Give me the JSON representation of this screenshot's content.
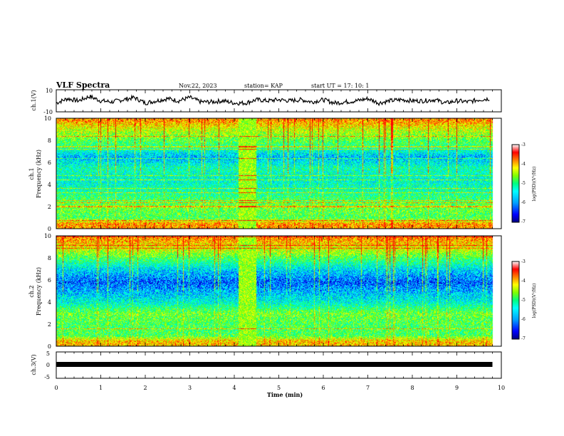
{
  "header": {
    "title": "VLF Spectra",
    "date": "Nov.22, 2023",
    "station": "station= KAP",
    "start": "start  UT  =   17: 10: 1"
  },
  "colors": {
    "background": "#ffffff",
    "frame": "#000000",
    "trace": "#000000",
    "colormap": [
      "#000080",
      "#0000ff",
      "#00a0ff",
      "#00ffff",
      "#00ff80",
      "#80ff00",
      "#ffff00",
      "#ff8000",
      "#ff0000",
      "#ffffff"
    ]
  },
  "chart_data": [
    {
      "id": "ch1-waveform",
      "type": "line",
      "ylabel": "ch.1(V)",
      "ylim": [
        -10,
        10
      ],
      "yticks": [
        "10",
        "-10"
      ],
      "xlim": [
        0,
        10
      ],
      "series": [
        {
          "x": [
            0,
            0.25,
            0.5,
            0.75,
            1,
            1.25,
            1.5,
            1.75,
            2,
            2.25,
            2.5,
            2.75,
            3,
            3.25,
            3.5,
            3.75,
            4,
            4.25,
            4.5,
            4.75,
            5,
            5.25,
            5.5,
            5.75,
            6,
            6.25,
            6.5,
            6.75,
            7,
            7.25,
            7.5,
            7.75,
            8,
            8.25,
            8.5,
            8.75,
            9,
            9.25,
            9.5,
            9.75
          ],
          "y": [
            -2,
            2,
            0,
            4,
            0,
            -1,
            1,
            3,
            -2,
            0,
            2,
            0,
            3,
            -1,
            -1,
            0,
            -2,
            -2,
            1,
            0,
            1,
            0,
            1,
            -1,
            1,
            -2,
            -1,
            0,
            2,
            -2,
            0,
            1,
            0,
            0,
            1,
            -2,
            0,
            -1,
            1,
            2
          ]
        }
      ]
    },
    {
      "id": "ch1-spectrogram",
      "type": "heatmap",
      "ylabel": "ch.1",
      "ylabel2": "Frequency (kHz)",
      "ylim": [
        0,
        10
      ],
      "yticks": [
        "0",
        "2",
        "4",
        "6",
        "8",
        "10"
      ],
      "xlim": [
        0,
        10
      ],
      "z_profile_by_frequency_khz": [
        {
          "f": 0.5,
          "level": 0.85
        },
        {
          "f": 1,
          "level": 0.55
        },
        {
          "f": 2,
          "level": 0.6
        },
        {
          "f": 2.5,
          "level": 0.55
        },
        {
          "f": 3.5,
          "level": 0.45
        },
        {
          "f": 4.5,
          "level": 0.4
        },
        {
          "f": 5.5,
          "level": 0.45
        },
        {
          "f": 6.5,
          "level": 0.3
        },
        {
          "f": 7.5,
          "level": 0.5
        },
        {
          "f": 9,
          "level": 0.7
        },
        {
          "f": 9.8,
          "level": 0.85
        }
      ],
      "colorbar": {
        "label": "log(PSD)(V²/Hz)",
        "ticks": [
          "-3",
          "-4",
          "-5",
          "-6",
          "-7"
        ],
        "range": [
          -7,
          -3
        ]
      }
    },
    {
      "id": "ch2-spectrogram",
      "type": "heatmap",
      "ylabel": "ch.2",
      "ylabel2": "Frequency (kHz)",
      "ylim": [
        0,
        10
      ],
      "yticks": [
        "0",
        "2",
        "4",
        "6",
        "8",
        "10"
      ],
      "xlim": [
        0,
        10
      ],
      "z_profile_by_frequency_khz": [
        {
          "f": 0.5,
          "level": 0.8
        },
        {
          "f": 1,
          "level": 0.55
        },
        {
          "f": 2,
          "level": 0.55
        },
        {
          "f": 3,
          "level": 0.6
        },
        {
          "f": 4,
          "level": 0.4
        },
        {
          "f": 5,
          "level": 0.3
        },
        {
          "f": 5.8,
          "level": 0.2
        },
        {
          "f": 7,
          "level": 0.35
        },
        {
          "f": 8.5,
          "level": 0.65
        },
        {
          "f": 9.7,
          "level": 0.85
        }
      ],
      "colorbar": {
        "label": "log(PSD)(V²/Hz)",
        "ticks": [
          "-3",
          "-4",
          "-5",
          "-6",
          "-7"
        ],
        "range": [
          -7,
          -3
        ]
      }
    },
    {
      "id": "ch3-waveform",
      "type": "line",
      "ylabel": "ch.3(V)",
      "ylim": [
        -5,
        5
      ],
      "yticks": [
        "5",
        "0",
        "-5"
      ],
      "xlim": [
        0,
        10
      ],
      "xlabel": "Time (min)",
      "xticks": [
        "0",
        "1",
        "2",
        "3",
        "4",
        "5",
        "6",
        "7",
        "8",
        "9",
        "10"
      ],
      "series": [
        {
          "x": [
            0,
            9.8
          ],
          "y": [
            0,
            0
          ]
        }
      ]
    }
  ]
}
